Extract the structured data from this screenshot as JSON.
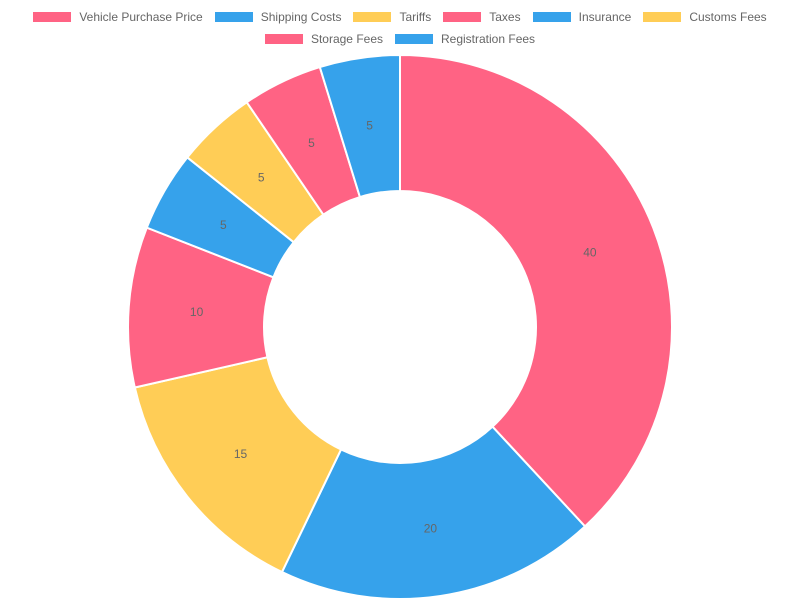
{
  "chart_data": {
    "type": "pie",
    "variant": "doughnut",
    "categories": [
      "Vehicle Purchase Price",
      "Shipping Costs",
      "Tariffs",
      "Taxes",
      "Insurance",
      "Customs Fees",
      "Storage Fees",
      "Registration Fees"
    ],
    "values": [
      40,
      20,
      15,
      10,
      5,
      5,
      5,
      5
    ],
    "colors": [
      "#ff6384",
      "#36a2eb",
      "#ffcd56",
      "#ff6384",
      "#36a2eb",
      "#ffcd56",
      "#ff6384",
      "#36a2eb"
    ],
    "legend_position": "top",
    "data_labels": [
      "40",
      "20",
      "15",
      "10",
      "5",
      "5",
      "5",
      "5"
    ]
  }
}
